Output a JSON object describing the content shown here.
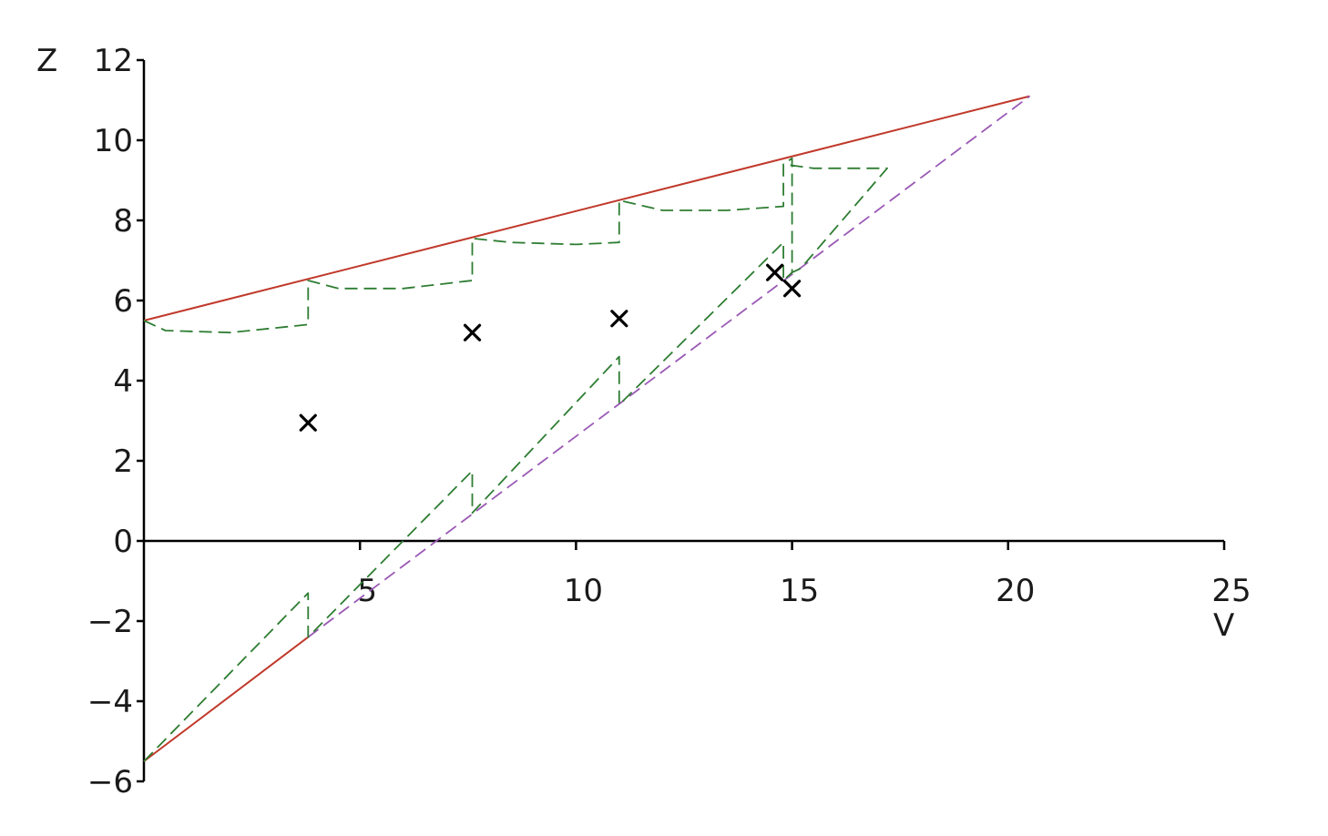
{
  "chart_data": {
    "type": "line",
    "xlabel": "V",
    "ylabel": "Z",
    "xlim": [
      0,
      25
    ],
    "ylim": [
      -6,
      12
    ],
    "x_ticks": [
      "5",
      "10",
      "15",
      "20",
      "25"
    ],
    "y_ticks": [
      "12",
      "10",
      "8",
      "6",
      "4",
      "2",
      "0",
      "−2",
      "−4",
      "−6"
    ],
    "grid": false,
    "legend": "none",
    "series": [
      {
        "style": "solid",
        "color": "#c0392b",
        "points": [
          [
            0,
            5.5
          ],
          [
            20.5,
            11.1
          ]
        ]
      },
      {
        "style": "solid",
        "color": "#c0392b",
        "points": [
          [
            0,
            -5.5
          ],
          [
            3.8,
            -2.4
          ]
        ]
      },
      {
        "style": "dashed",
        "color": "#9b59b6",
        "points": [
          [
            3.8,
            -2.4
          ],
          [
            20.5,
            11.1
          ]
        ]
      },
      {
        "style": "dashed",
        "color": "#2e7d32",
        "points": [
          [
            0,
            5.5
          ],
          [
            0.5,
            5.25
          ],
          [
            2,
            5.2
          ],
          [
            3.8,
            5.4
          ],
          [
            3.8,
            6.5
          ],
          [
            4.5,
            6.3
          ],
          [
            6,
            6.3
          ],
          [
            7.6,
            6.5
          ],
          [
            7.6,
            7.55
          ],
          [
            8.5,
            7.45
          ],
          [
            10,
            7.4
          ],
          [
            11,
            7.45
          ],
          [
            11,
            8.5
          ],
          [
            12,
            8.25
          ],
          [
            13.5,
            8.25
          ],
          [
            14.8,
            8.35
          ],
          [
            14.8,
            9.4
          ],
          [
            15.5,
            9.3
          ],
          [
            17.2,
            9.3
          ],
          [
            15.2,
            6.8
          ],
          [
            15,
            6.7
          ],
          [
            15,
            9.55
          ],
          [
            14.8,
            9.4
          ]
        ]
      },
      {
        "style": "dashed",
        "color": "#2e7d32",
        "points": [
          [
            0,
            -5.5
          ],
          [
            3.8,
            -1.3
          ],
          [
            3.8,
            -2.4
          ],
          [
            7.6,
            1.75
          ],
          [
            7.6,
            0.7
          ],
          [
            11,
            4.6
          ],
          [
            11,
            3.4
          ],
          [
            14.8,
            7.45
          ],
          [
            14.8,
            6.5
          ],
          [
            15,
            6.7
          ]
        ]
      },
      {
        "style": "markers",
        "marker": "x",
        "color": "#000000",
        "points": [
          [
            3.8,
            2.95
          ],
          [
            7.6,
            5.2
          ],
          [
            11,
            5.55
          ],
          [
            14.6,
            6.7
          ],
          [
            15,
            6.3
          ]
        ]
      }
    ]
  }
}
